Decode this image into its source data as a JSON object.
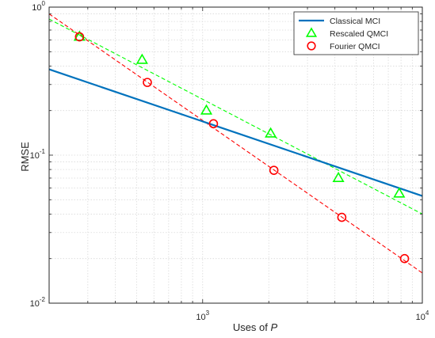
{
  "chart_data": {
    "type": "line",
    "xscale": "log",
    "yscale": "log",
    "xlim": [
      200,
      10000
    ],
    "ylim": [
      0.01,
      1
    ],
    "xlabel": "Uses of",
    "xlabel_var": "P",
    "ylabel": "RMSE",
    "grid": true,
    "legend_position": "top-right",
    "x_ticks": [
      {
        "base": "10",
        "exp": "3",
        "value": 1000
      },
      {
        "base": "10",
        "exp": "4",
        "value": 10000
      }
    ],
    "y_ticks": [
      {
        "base": "10",
        "exp": "-2",
        "value": 0.01
      },
      {
        "base": "10",
        "exp": "-1",
        "value": 0.1
      },
      {
        "base": "10",
        "exp": "0",
        "value": 1
      }
    ],
    "series": [
      {
        "name": "Classical MCI",
        "style": "solid-line",
        "color": "#0072bd",
        "x": [
          200,
          10000
        ],
        "y": [
          0.38,
          0.053
        ]
      },
      {
        "name": "Rescaled QMCI",
        "style": "triangle-markers",
        "color": "#00ff00",
        "x": [
          275,
          530,
          1040,
          2040,
          4150,
          7850
        ],
        "y": [
          0.63,
          0.44,
          0.2,
          0.14,
          0.07,
          0.055
        ],
        "fit": {
          "x": [
            200,
            10000
          ],
          "y": [
            0.83,
            0.04
          ]
        }
      },
      {
        "name": "Fourier QMCI",
        "style": "circle-markers",
        "color": "#ff0000",
        "x": [
          275,
          560,
          1120,
          2110,
          4300,
          8300
        ],
        "y": [
          0.63,
          0.31,
          0.163,
          0.079,
          0.038,
          0.02
        ],
        "fit": {
          "x": [
            200,
            10000
          ],
          "y": [
            0.9,
            0.016
          ]
        }
      }
    ]
  }
}
